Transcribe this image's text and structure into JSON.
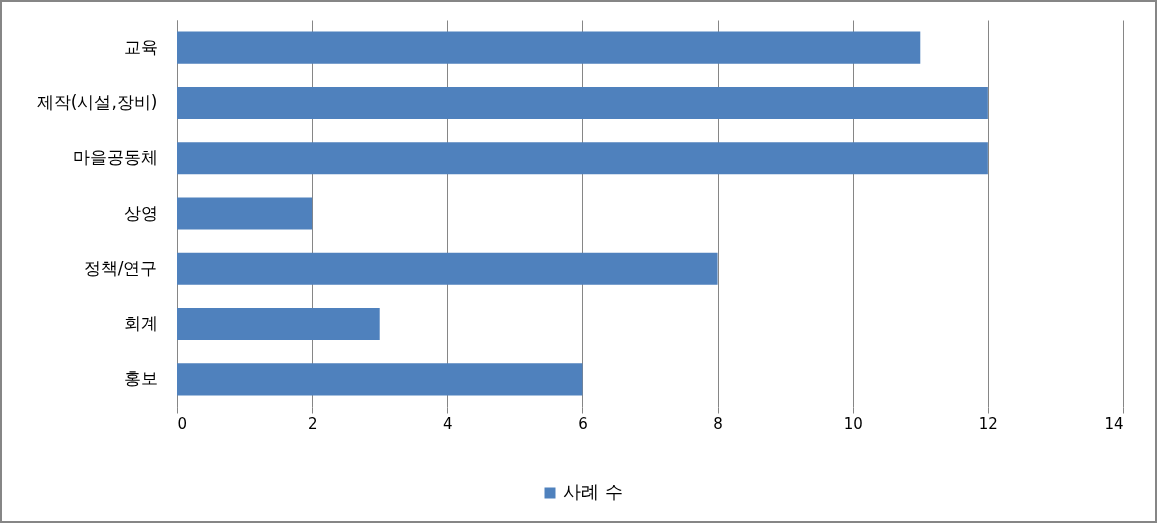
{
  "chart_data": {
    "type": "bar",
    "orientation": "horizontal",
    "categories": [
      "교육",
      "제작(시설,장비)",
      "마을공동체",
      "상영",
      "정책/연구",
      "회계",
      "홍보"
    ],
    "series": [
      {
        "name": "사례 수",
        "color": "#4f81bd",
        "values": [
          11,
          12,
          12,
          2,
          8,
          3,
          6
        ]
      }
    ],
    "xlim": [
      0,
      14
    ],
    "xticks": [
      0,
      2,
      4,
      6,
      8,
      10,
      12,
      14
    ],
    "grid": "x",
    "legend": "bottom"
  }
}
